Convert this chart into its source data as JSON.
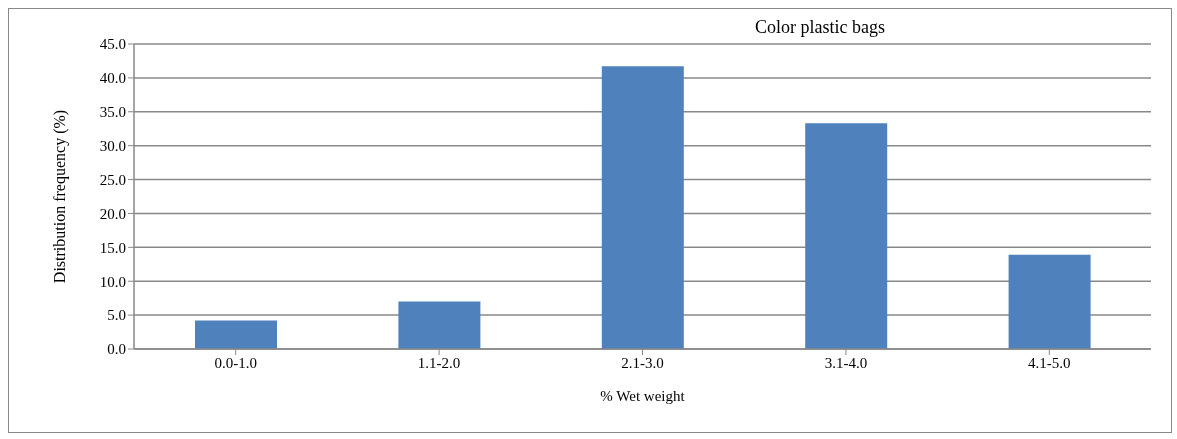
{
  "chart_data": {
    "type": "bar",
    "title": "Color plastic bags",
    "xlabel": "% Wet weight",
    "ylabel": "Distribution frequency (%)",
    "categories": [
      "0.0-1.0",
      "1.1-2.0",
      "2.1-3.0",
      "3.1-4.0",
      "4.1-5.0"
    ],
    "values": [
      4.2,
      7.0,
      41.7,
      33.3,
      13.9
    ],
    "color": "#4f81bd",
    "ylim": [
      0,
      45
    ],
    "yticks": [
      {
        "value": 0,
        "label": "0.0"
      },
      {
        "value": 5,
        "label": "5.0"
      },
      {
        "value": 10,
        "label": "10.0"
      },
      {
        "value": 15,
        "label": "15.0"
      },
      {
        "value": 20,
        "label": "20.0"
      },
      {
        "value": 25,
        "label": "25.0"
      },
      {
        "value": 30,
        "label": "30.0"
      },
      {
        "value": 35,
        "label": "35.0"
      },
      {
        "value": 40,
        "label": "40.0"
      },
      {
        "value": 45,
        "label": "45.0"
      }
    ],
    "grid": "y"
  }
}
